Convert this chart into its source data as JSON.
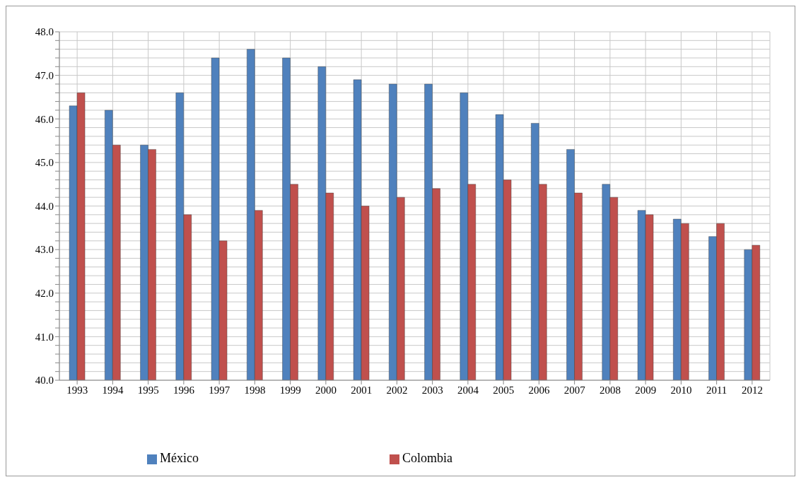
{
  "chart_data": {
    "type": "bar",
    "categories": [
      "1993",
      "1994",
      "1995",
      "1996",
      "1997",
      "1998",
      "1999",
      "2000",
      "2001",
      "2002",
      "2003",
      "2004",
      "2005",
      "2006",
      "2007",
      "2008",
      "2009",
      "2010",
      "2011",
      "2012"
    ],
    "series": [
      {
        "name": "México",
        "color": "#4f81bd",
        "values": [
          46.3,
          46.2,
          45.4,
          46.6,
          47.4,
          47.6,
          47.4,
          47.2,
          46.9,
          46.8,
          46.8,
          46.6,
          46.1,
          45.9,
          45.3,
          44.5,
          43.9,
          43.7,
          43.3,
          43.0
        ]
      },
      {
        "name": "Colombia",
        "color": "#c0504d",
        "values": [
          46.6,
          45.4,
          45.3,
          43.8,
          43.2,
          43.9,
          44.5,
          44.3,
          44.0,
          44.2,
          44.4,
          44.5,
          44.6,
          44.5,
          44.3,
          44.2,
          43.8,
          43.6,
          43.6,
          43.1
        ]
      }
    ],
    "ylim": [
      40,
      48
    ],
    "yticks": [
      {
        "value": 40,
        "label": "40.0"
      },
      {
        "value": 40.2,
        "label": null
      },
      {
        "value": 40.4,
        "label": null
      },
      {
        "value": 40.6,
        "label": null
      },
      {
        "value": 40.8,
        "label": null
      },
      {
        "value": 41,
        "label": "41.0"
      },
      {
        "value": 41.2,
        "label": null
      },
      {
        "value": 41.4,
        "label": null
      },
      {
        "value": 41.6,
        "label": null
      },
      {
        "value": 41.8,
        "label": null
      },
      {
        "value": 42,
        "label": "42.0"
      },
      {
        "value": 42.2,
        "label": null
      },
      {
        "value": 42.4,
        "label": null
      },
      {
        "value": 42.6,
        "label": null
      },
      {
        "value": 42.8,
        "label": null
      },
      {
        "value": 43,
        "label": "43.0"
      },
      {
        "value": 43.2,
        "label": null
      },
      {
        "value": 43.4,
        "label": null
      },
      {
        "value": 43.6,
        "label": null
      },
      {
        "value": 43.8,
        "label": null
      },
      {
        "value": 44,
        "label": "44.0"
      },
      {
        "value": 44.2,
        "label": null
      },
      {
        "value": 44.4,
        "label": null
      },
      {
        "value": 44.6,
        "label": null
      },
      {
        "value": 44.8,
        "label": null
      },
      {
        "value": 45,
        "label": "45.0"
      },
      {
        "value": 45.2,
        "label": null
      },
      {
        "value": 45.4,
        "label": null
      },
      {
        "value": 45.6,
        "label": null
      },
      {
        "value": 45.8,
        "label": null
      },
      {
        "value": 46,
        "label": "46.0"
      },
      {
        "value": 46.2,
        "label": null
      },
      {
        "value": 46.4,
        "label": null
      },
      {
        "value": 46.6,
        "label": null
      },
      {
        "value": 46.8,
        "label": null
      },
      {
        "value": 47,
        "label": "47.0"
      },
      {
        "value": 47.2,
        "label": null
      },
      {
        "value": 47.4,
        "label": null
      },
      {
        "value": 47.6,
        "label": null
      },
      {
        "value": 47.8,
        "label": null
      },
      {
        "value": 48,
        "label": "48.0"
      }
    ],
    "grid": true,
    "legend": "bottom"
  }
}
